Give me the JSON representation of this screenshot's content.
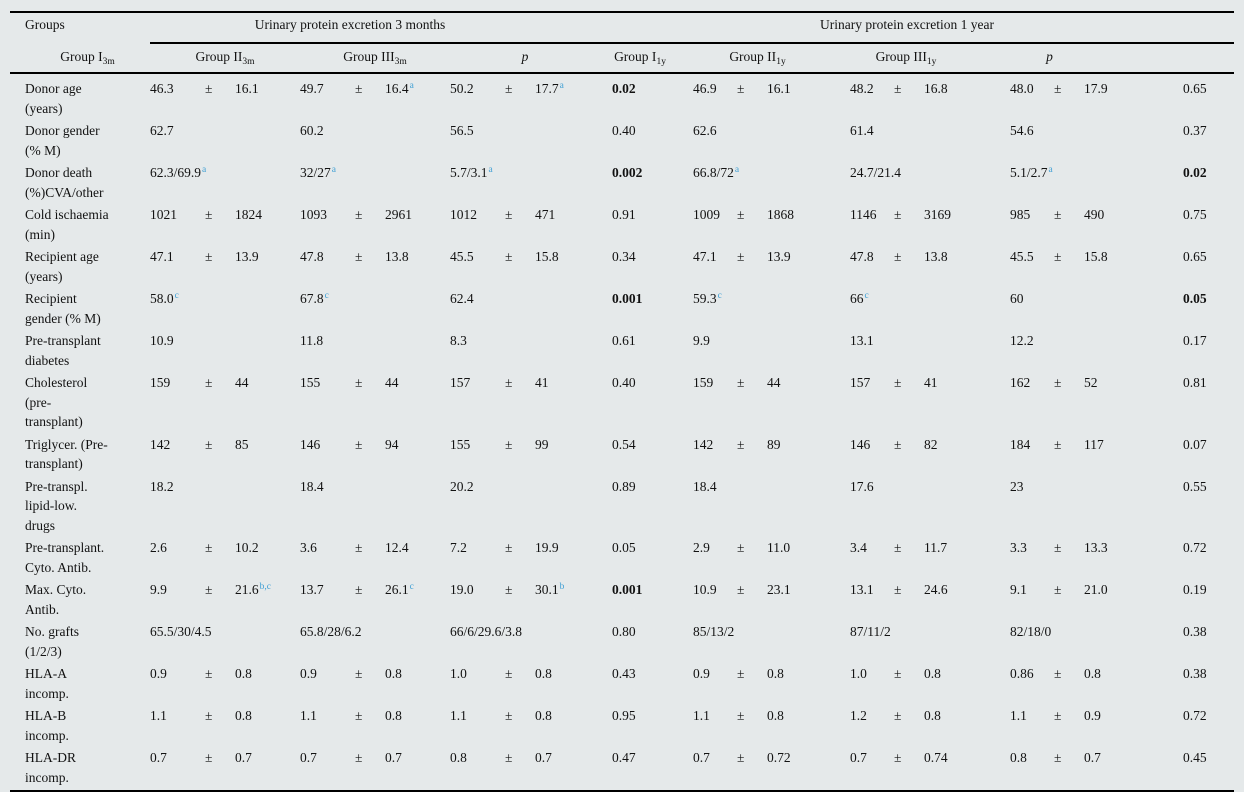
{
  "colors": {
    "background": "#e5e9ea",
    "superscript_blue": "#3f9fd4",
    "rule": "#000000"
  },
  "table": {
    "groups_header": "Groups",
    "span_headers": {
      "months3": "Urinary protein excretion 3 months",
      "year1": "Urinary protein excretion 1 year"
    },
    "col_headers": [
      {
        "name": "Group I",
        "sub": "3m"
      },
      {
        "name": "Group II",
        "sub": "3m"
      },
      {
        "name": "Group III",
        "sub": "3m"
      },
      {
        "name": "p",
        "italic": true
      },
      {
        "name": "Group I",
        "sub": "1y"
      },
      {
        "name": "Group II",
        "sub": "1y"
      },
      {
        "name": "Group III",
        "sub": "1y"
      },
      {
        "name": "p",
        "italic": true
      }
    ],
    "rows": [
      {
        "label": [
          "Donor age",
          "(years)"
        ],
        "cells": [
          {
            "t": "pm",
            "m": "46.3",
            "s": "16.1"
          },
          {
            "t": "pm",
            "m": "49.7",
            "s": "16.4",
            "sup": "a"
          },
          {
            "t": "pm",
            "m": "50.2",
            "s": "17.7",
            "sup": "a"
          },
          {
            "t": "p",
            "v": "0.02",
            "b": true
          },
          {
            "t": "pm",
            "m": "46.9",
            "s": "16.1"
          },
          {
            "t": "pm",
            "m": "48.2",
            "s": "16.8"
          },
          {
            "t": "pm",
            "m": "48.0",
            "s": "17.9"
          },
          {
            "t": "p",
            "v": "0.65"
          }
        ]
      },
      {
        "label": [
          "Donor gender",
          "(% M)"
        ],
        "cells": [
          {
            "t": "s",
            "v": "62.7"
          },
          {
            "t": "s",
            "v": "60.2"
          },
          {
            "t": "s",
            "v": "56.5"
          },
          {
            "t": "p",
            "v": "0.40"
          },
          {
            "t": "s",
            "v": "62.6"
          },
          {
            "t": "s",
            "v": "61.4"
          },
          {
            "t": "s",
            "v": "54.6"
          },
          {
            "t": "p",
            "v": "0.37"
          }
        ]
      },
      {
        "label": [
          "Donor death",
          "(%)CVA/other"
        ],
        "cells": [
          {
            "t": "s",
            "v": "62.3/69.9",
            "sup": "a"
          },
          {
            "t": "s",
            "v": "32/27",
            "sup": "a"
          },
          {
            "t": "s",
            "v": "5.7/3.1",
            "sup": "a"
          },
          {
            "t": "p",
            "v": "0.002",
            "b": true
          },
          {
            "t": "s",
            "v": "66.8/72",
            "sup": "a"
          },
          {
            "t": "s",
            "v": "24.7/21.4"
          },
          {
            "t": "s",
            "v": "5.1/2.7",
            "sup": "a"
          },
          {
            "t": "p",
            "v": "0.02",
            "b": true
          }
        ]
      },
      {
        "label": [
          "Cold ischaemia",
          "(min)"
        ],
        "cells": [
          {
            "t": "pm",
            "m": "1021",
            "s": "1824"
          },
          {
            "t": "pm",
            "m": "1093",
            "s": "2961"
          },
          {
            "t": "pm",
            "m": "1012",
            "s": "471"
          },
          {
            "t": "p",
            "v": "0.91"
          },
          {
            "t": "pm",
            "m": "1009",
            "s": "1868"
          },
          {
            "t": "pm",
            "m": "1146",
            "s": "3169"
          },
          {
            "t": "pm",
            "m": "985",
            "s": "490"
          },
          {
            "t": "p",
            "v": "0.75"
          }
        ]
      },
      {
        "label": [
          "Recipient age",
          "(years)"
        ],
        "cells": [
          {
            "t": "pm",
            "m": "47.1",
            "s": "13.9"
          },
          {
            "t": "pm",
            "m": "47.8",
            "s": "13.8"
          },
          {
            "t": "pm",
            "m": "45.5",
            "s": "15.8"
          },
          {
            "t": "p",
            "v": "0.34"
          },
          {
            "t": "pm",
            "m": "47.1",
            "s": "13.9"
          },
          {
            "t": "pm",
            "m": "47.8",
            "s": "13.8"
          },
          {
            "t": "pm",
            "m": "45.5",
            "s": "15.8"
          },
          {
            "t": "p",
            "v": "0.65"
          }
        ]
      },
      {
        "label": [
          "Recipient",
          "gender (% M)"
        ],
        "cells": [
          {
            "t": "s",
            "v": "58.0",
            "sup": "c"
          },
          {
            "t": "s",
            "v": "67.8",
            "sup": "c"
          },
          {
            "t": "s",
            "v": "62.4"
          },
          {
            "t": "p",
            "v": "0.001",
            "b": true
          },
          {
            "t": "s",
            "v": "59.3",
            "sup": "c"
          },
          {
            "t": "s",
            "v": "66",
            "sup": "c"
          },
          {
            "t": "s",
            "v": "60"
          },
          {
            "t": "p",
            "v": "0.05",
            "b": true
          }
        ]
      },
      {
        "label": [
          "Pre-transplant",
          "diabetes"
        ],
        "cells": [
          {
            "t": "s",
            "v": "10.9"
          },
          {
            "t": "s",
            "v": "11.8"
          },
          {
            "t": "s",
            "v": "8.3"
          },
          {
            "t": "p",
            "v": "0.61"
          },
          {
            "t": "s",
            "v": "9.9"
          },
          {
            "t": "s",
            "v": "13.1"
          },
          {
            "t": "s",
            "v": "12.2"
          },
          {
            "t": "p",
            "v": "0.17"
          }
        ]
      },
      {
        "label": [
          "Cholesterol",
          "(pre-",
          "transplant)"
        ],
        "cells": [
          {
            "t": "pm",
            "m": "159",
            "s": "44"
          },
          {
            "t": "pm",
            "m": "155",
            "s": "44"
          },
          {
            "t": "pm",
            "m": "157",
            "s": "41"
          },
          {
            "t": "p",
            "v": "0.40"
          },
          {
            "t": "pm",
            "m": "159",
            "s": "44"
          },
          {
            "t": "pm",
            "m": "157",
            "s": "41"
          },
          {
            "t": "pm",
            "m": "162",
            "s": "52"
          },
          {
            "t": "p",
            "v": "0.81"
          }
        ]
      },
      {
        "label": [
          "Triglycer. (Pre-",
          "transplant)"
        ],
        "cells": [
          {
            "t": "pm",
            "m": "142",
            "s": "85"
          },
          {
            "t": "pm",
            "m": "146",
            "s": "94"
          },
          {
            "t": "pm",
            "m": "155",
            "s": "99"
          },
          {
            "t": "p",
            "v": "0.54"
          },
          {
            "t": "pm",
            "m": "142",
            "s": "89"
          },
          {
            "t": "pm",
            "m": "146",
            "s": "82"
          },
          {
            "t": "pm",
            "m": "184",
            "s": "117"
          },
          {
            "t": "p",
            "v": "0.07"
          }
        ]
      },
      {
        "label": [
          "Pre-transpl.",
          "lipid-low.",
          "drugs"
        ],
        "cells": [
          {
            "t": "s",
            "v": "18.2"
          },
          {
            "t": "s",
            "v": "18.4"
          },
          {
            "t": "s",
            "v": "20.2"
          },
          {
            "t": "p",
            "v": "0.89"
          },
          {
            "t": "s",
            "v": "18.4"
          },
          {
            "t": "s",
            "v": "17.6"
          },
          {
            "t": "s",
            "v": "23"
          },
          {
            "t": "p",
            "v": "0.55"
          }
        ]
      },
      {
        "label": [
          "Pre-transplant.",
          "Cyto. Antib."
        ],
        "cells": [
          {
            "t": "pm",
            "m": "2.6",
            "s": "10.2"
          },
          {
            "t": "pm",
            "m": "3.6",
            "s": "12.4"
          },
          {
            "t": "pm",
            "m": "7.2",
            "s": "19.9"
          },
          {
            "t": "p",
            "v": "0.05"
          },
          {
            "t": "pm",
            "m": "2.9",
            "s": "11.0"
          },
          {
            "t": "pm",
            "m": "3.4",
            "s": "11.7"
          },
          {
            "t": "pm",
            "m": "3.3",
            "s": "13.3"
          },
          {
            "t": "p",
            "v": "0.72"
          }
        ]
      },
      {
        "label": [
          "Max. Cyto.",
          "Antib."
        ],
        "cells": [
          {
            "t": "pm",
            "m": "9.9",
            "s": "21.6",
            "sup": "b,c"
          },
          {
            "t": "pm",
            "m": "13.7",
            "s": "26.1",
            "sup": "c"
          },
          {
            "t": "pm",
            "m": "19.0",
            "s": "30.1",
            "sup": "b"
          },
          {
            "t": "p",
            "v": "0.001",
            "b": true
          },
          {
            "t": "pm",
            "m": "10.9",
            "s": "23.1"
          },
          {
            "t": "pm",
            "m": "13.1",
            "s": "24.6"
          },
          {
            "t": "pm",
            "m": "9.1",
            "s": "21.0"
          },
          {
            "t": "p",
            "v": "0.19"
          }
        ]
      },
      {
        "label": [
          "No. grafts",
          "(1/2/3)"
        ],
        "cells": [
          {
            "t": "s",
            "v": "65.5/30/4.5"
          },
          {
            "t": "s",
            "v": "65.8/28/6.2"
          },
          {
            "t": "s",
            "v": "66/6/29.6/3.8"
          },
          {
            "t": "p",
            "v": "0.80"
          },
          {
            "t": "s",
            "v": "85/13/2"
          },
          {
            "t": "s",
            "v": "87/11/2"
          },
          {
            "t": "s",
            "v": "82/18/0"
          },
          {
            "t": "p",
            "v": "0.38"
          }
        ]
      },
      {
        "label": [
          "HLA-A",
          "incomp."
        ],
        "cells": [
          {
            "t": "pm",
            "m": "0.9",
            "s": "0.8"
          },
          {
            "t": "pm",
            "m": "0.9",
            "s": "0.8"
          },
          {
            "t": "pm",
            "m": "1.0",
            "s": "0.8"
          },
          {
            "t": "p",
            "v": "0.43"
          },
          {
            "t": "pm",
            "m": "0.9",
            "s": "0.8"
          },
          {
            "t": "pm",
            "m": "1.0",
            "s": "0.8"
          },
          {
            "t": "pm",
            "m": "0.86",
            "s": "0.8"
          },
          {
            "t": "p",
            "v": "0.38"
          }
        ]
      },
      {
        "label": [
          "HLA-B",
          "incomp."
        ],
        "cells": [
          {
            "t": "pm",
            "m": "1.1",
            "s": "0.8"
          },
          {
            "t": "pm",
            "m": "1.1",
            "s": "0.8"
          },
          {
            "t": "pm",
            "m": "1.1",
            "s": "0.8"
          },
          {
            "t": "p",
            "v": "0.95"
          },
          {
            "t": "pm",
            "m": "1.1",
            "s": "0.8"
          },
          {
            "t": "pm",
            "m": "1.2",
            "s": "0.8"
          },
          {
            "t": "pm",
            "m": "1.1",
            "s": "0.9"
          },
          {
            "t": "p",
            "v": "0.72"
          }
        ]
      },
      {
        "label": [
          "HLA-DR",
          "incomp."
        ],
        "cells": [
          {
            "t": "pm",
            "m": "0.7",
            "s": "0.7"
          },
          {
            "t": "pm",
            "m": "0.7",
            "s": "0.7"
          },
          {
            "t": "pm",
            "m": "0.8",
            "s": "0.7"
          },
          {
            "t": "p",
            "v": "0.47"
          },
          {
            "t": "pm",
            "m": "0.7",
            "s": "0.72"
          },
          {
            "t": "pm",
            "m": "0.7",
            "s": "0.74"
          },
          {
            "t": "pm",
            "m": "0.8",
            "s": "0.7"
          },
          {
            "t": "p",
            "v": "0.45"
          }
        ]
      }
    ]
  }
}
